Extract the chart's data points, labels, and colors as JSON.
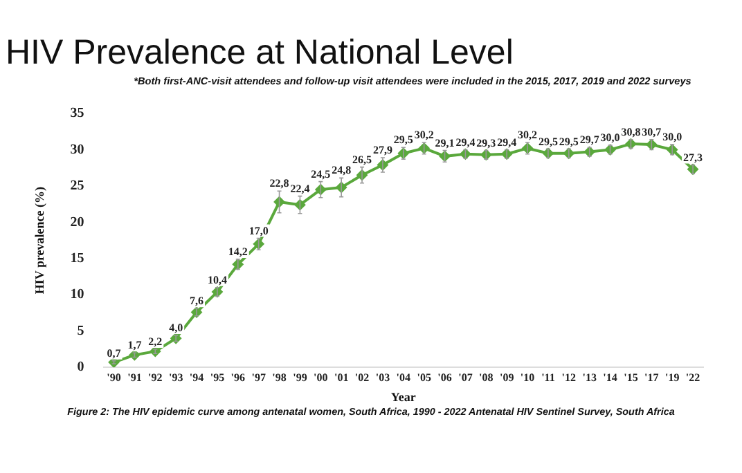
{
  "chart_data": {
    "type": "line",
    "title": "HIV Prevalence at National Level",
    "subtitle": "*Both first-ANC-visit attendees and follow-up visit attendees were included in the 2015, 2017, 2019 and 2022 surveys",
    "xlabel": "Year",
    "ylabel": "HIV prevalence (%)",
    "annotations": [
      "Figure 2: The HIV epidemic curve among antenatal women, South Africa, 1990 - 2022 Antenatal HIV Sentinel Survey, South Africa"
    ],
    "categories": [
      "'90",
      "'91",
      "'92",
      "'93",
      "'94",
      "'95",
      "'96",
      "'97",
      "'98",
      "'99",
      "'00",
      "'01",
      "'02",
      "'03",
      "'04",
      "'05",
      "'06",
      "'07",
      "'08",
      "'09",
      "'10",
      "'11",
      "'12",
      "'13",
      "'14",
      "'15",
      "'17",
      "'19",
      "'22"
    ],
    "values": [
      0.7,
      1.7,
      2.2,
      4.0,
      7.6,
      10.4,
      14.2,
      17.0,
      22.8,
      22.4,
      24.5,
      24.8,
      26.5,
      27.9,
      29.5,
      30.2,
      29.1,
      29.4,
      29.3,
      29.4,
      30.2,
      29.5,
      29.5,
      29.7,
      30.0,
      30.8,
      30.7,
      30.0,
      27.3
    ],
    "value_labels": [
      "0,7",
      "1,7",
      "2,2",
      "4,0",
      "7,6",
      "10,4",
      "14,2",
      "17,0",
      "22,8",
      "22,4",
      "24,5",
      "24,8",
      "26,5",
      "27,9",
      "29,5",
      "30,2",
      "29,1",
      "29,4",
      "29,3",
      "29,4",
      "30,2",
      "29,5",
      "29,5",
      "29,7",
      "30,0",
      "30,8",
      "30,7",
      "30,0",
      "27,3"
    ],
    "errors": [
      0.2,
      0.3,
      0.3,
      0.4,
      0.5,
      0.6,
      0.7,
      0.8,
      1.5,
      1.2,
      1.1,
      1.3,
      1.1,
      1.0,
      0.8,
      0.8,
      0.8,
      0.6,
      0.6,
      0.6,
      0.8,
      0.6,
      0.6,
      0.6,
      0.6,
      0.6,
      0.7,
      0.7,
      0.6
    ],
    "color": "#5aa83c",
    "marker": "diamond",
    "grid": false,
    "ylim": [
      0,
      35
    ],
    "yticks": [
      0,
      5,
      10,
      15,
      20,
      25,
      30,
      35
    ]
  }
}
